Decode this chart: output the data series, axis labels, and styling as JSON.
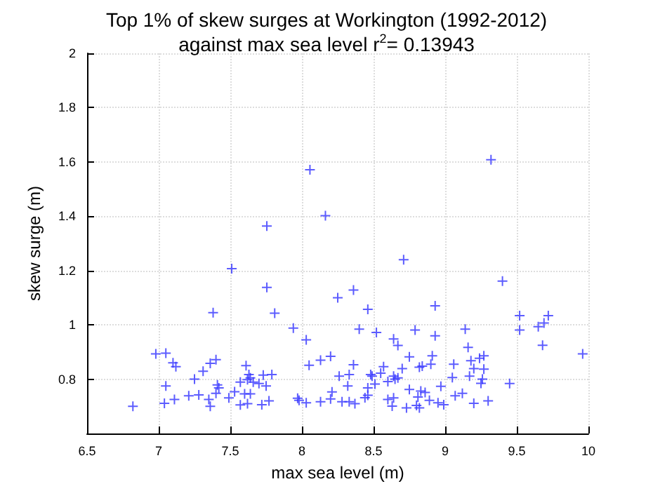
{
  "chart_data": {
    "type": "scatter",
    "title": "Top 1% of skew surges at Workington (1992-2012)",
    "subtitle": "against max sea level r$^{2}$= 0.13943",
    "xlabel": "max sea level (m)",
    "ylabel": "skew surge (m)",
    "xlim": [
      6.5,
      10
    ],
    "xticks": [
      6.5,
      7,
      7.5,
      8,
      8.5,
      9,
      9.5,
      10
    ],
    "ylim": [
      0.6,
      2
    ],
    "yticks": [
      {
        "value": 0.6,
        "label": null
      },
      0.8,
      1,
      1.2,
      1.4,
      1.6,
      1.8,
      2
    ],
    "grid": true,
    "marker": "cross",
    "series": [
      {
        "color": "#3333ff",
        "x": [
          7.755,
          8.056,
          8.164,
          9.32,
          6.82,
          6.98,
          7.05,
          7.1,
          7.12,
          7.05,
          7.04,
          7.11,
          7.21,
          7.25,
          7.28,
          7.31,
          7.35,
          7.36,
          7.36,
          7.4,
          7.4,
          7.41,
          7.42,
          7.38,
          7.51,
          7.49,
          7.53,
          7.57,
          7.57,
          7.61,
          7.6,
          7.64,
          7.62,
          7.63,
          7.64,
          7.66,
          7.62,
          7.7,
          7.73,
          7.75,
          7.72,
          7.77,
          7.79,
          7.755,
          7.81,
          7.94,
          7.97,
          7.98,
          8.03,
          8.05,
          8.03,
          8.13,
          8.2,
          8.25,
          8.26,
          8.13,
          8.2,
          8.21,
          8.28,
          8.36,
          8.71,
          8.46,
          8.4,
          8.52,
          8.64,
          8.67,
          8.79,
          8.93,
          8.93,
          9.14,
          9.16,
          9.4,
          9.52,
          9.52,
          9.65,
          9.69,
          9.72,
          9.68,
          9.96,
          9.45,
          8.33,
          8.36,
          8.32,
          8.33,
          8.37,
          8.44,
          8.46,
          8.46,
          8.48,
          8.49,
          8.51,
          8.55,
          8.57,
          8.6,
          8.6,
          8.64,
          8.65,
          8.67,
          8.64,
          8.63,
          8.7,
          8.75,
          8.73,
          8.75,
          8.8,
          8.82,
          8.82,
          8.84,
          8.83,
          8.86,
          8.81,
          8.9,
          8.91,
          8.89,
          8.95,
          8.97,
          8.99,
          9.05,
          9.06,
          9.07,
          9.12,
          9.17,
          9.18,
          9.2,
          9.2,
          9.24,
          9.25,
          9.26,
          9.27,
          9.27,
          9.3
        ],
        "values": [
          1.364,
          1.571,
          1.402,
          1.608,
          0.7,
          0.893,
          0.896,
          0.86,
          0.846,
          0.775,
          0.711,
          0.725,
          0.739,
          0.8,
          0.742,
          0.829,
          0.725,
          0.7,
          0.858,
          0.872,
          0.748,
          0.779,
          0.768,
          1.045,
          1.207,
          0.731,
          0.754,
          0.789,
          0.705,
          0.85,
          0.746,
          0.746,
          0.71,
          0.817,
          0.805,
          0.789,
          0.798,
          0.784,
          0.815,
          0.775,
          0.706,
          0.72,
          0.817,
          1.138,
          1.043,
          0.988,
          0.73,
          0.722,
          0.945,
          0.851,
          0.713,
          0.87,
          0.884,
          1.1,
          0.811,
          0.717,
          0.727,
          0.753,
          0.717,
          1.128,
          1.24,
          1.057,
          0.984,
          0.972,
          0.948,
          0.924,
          0.981,
          1.07,
          0.96,
          0.984,
          0.917,
          1.161,
          1.034,
          0.981,
          0.993,
          1.007,
          1.034,
          0.925,
          0.893,
          0.784,
          0.817,
          0.853,
          0.775,
          0.717,
          0.71,
          0.732,
          0.741,
          0.768,
          0.817,
          0.811,
          0.782,
          0.822,
          0.846,
          0.791,
          0.725,
          0.811,
          0.8,
          0.805,
          0.731,
          0.701,
          0.839,
          0.882,
          0.694,
          0.762,
          0.703,
          0.694,
          0.844,
          0.848,
          0.756,
          0.751,
          0.734,
          0.855,
          0.886,
          0.722,
          0.713,
          0.774,
          0.706,
          0.806,
          0.855,
          0.739,
          0.748,
          0.811,
          0.868,
          0.711,
          0.839,
          0.877,
          0.785,
          0.8,
          0.886,
          0.837,
          0.72
        ]
      }
    ]
  }
}
